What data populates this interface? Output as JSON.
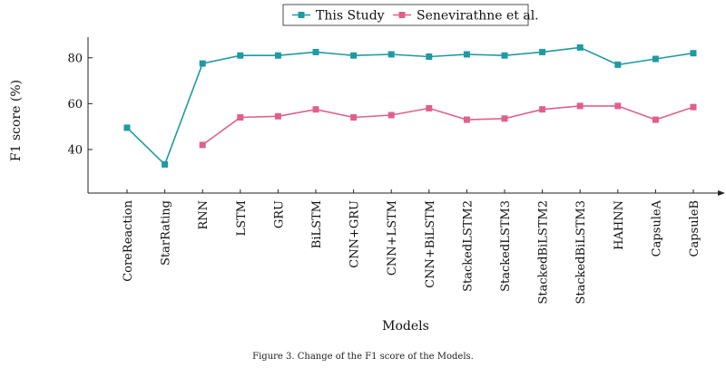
{
  "chart_data": {
    "type": "line",
    "categories": [
      "CoreReaction",
      "StarRating",
      "RNN",
      "LSTM",
      "GRU",
      "BiLSTM",
      "CNN+GRU",
      "CNN+LSTM",
      "CNN+BiLSTM",
      "StackedLSTM2",
      "StackedLSTM3",
      "StackedBiLSTM2",
      "StackedBiLSTM3",
      "HAHNN",
      "CapsuleA",
      "CapsuleB"
    ],
    "series": [
      {
        "name": "This Study",
        "color": "#1f9aa3",
        "marker": "square",
        "values": [
          49.5,
          33.5,
          77.5,
          81.0,
          81.0,
          82.5,
          81.0,
          81.5,
          80.5,
          81.5,
          81.0,
          82.5,
          84.5,
          77.0,
          79.5,
          82.0
        ]
      },
      {
        "name": "Senevirathne et al.",
        "color": "#e0608a",
        "marker": "square",
        "values": [
          null,
          null,
          42.0,
          54.0,
          54.5,
          57.5,
          54.0,
          55.0,
          58.0,
          53.0,
          53.5,
          57.5,
          59.0,
          59.0,
          53.0,
          58.5
        ]
      }
    ],
    "ylabel": "F1 score (%)",
    "xlabel": "Models",
    "ylim": [
      21,
      89
    ],
    "yticks": [
      40,
      60,
      80
    ],
    "grid": false,
    "legend_position": "top-center"
  },
  "caption": "Figure 3.   Change of the F1 score of the Models."
}
